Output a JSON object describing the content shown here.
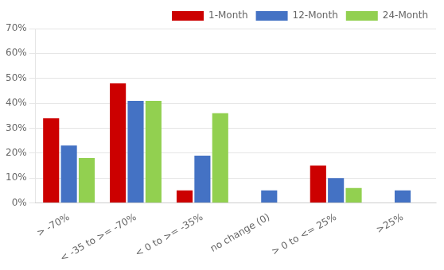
{
  "chart_data": {
    "type": "bar",
    "categories": [
      "> -70%",
      "< -35 to >= -70%",
      "< 0 to >= -35%",
      "no change (0)",
      "> 0 to <= 25%",
      ">25%"
    ],
    "series": [
      {
        "name": "1-Month",
        "color": "#cc0000",
        "values": [
          0.34,
          0.48,
          0.05,
          0.0,
          0.15,
          0.0
        ]
      },
      {
        "name": "12-Month",
        "color": "#4472c4",
        "values": [
          0.23,
          0.41,
          0.19,
          0.05,
          0.1,
          0.05
        ]
      },
      {
        "name": "24-Month",
        "color": "#92d050",
        "values": [
          0.18,
          0.41,
          0.36,
          0.0,
          0.06,
          0.0
        ]
      }
    ],
    "ylim": [
      0,
      0.7
    ],
    "yticks": [
      {
        "value": 0.0,
        "label": "0%"
      },
      {
        "value": 0.1,
        "label": "10%"
      },
      {
        "value": 0.2,
        "label": "20%"
      },
      {
        "value": 0.3,
        "label": "30%"
      },
      {
        "value": 0.4,
        "label": "40%"
      },
      {
        "value": 0.5,
        "label": "50%"
      },
      {
        "value": 0.6,
        "label": "60%"
      },
      {
        "value": 0.7,
        "label": "70%"
      }
    ],
    "grid": true,
    "legend": "upper right"
  }
}
